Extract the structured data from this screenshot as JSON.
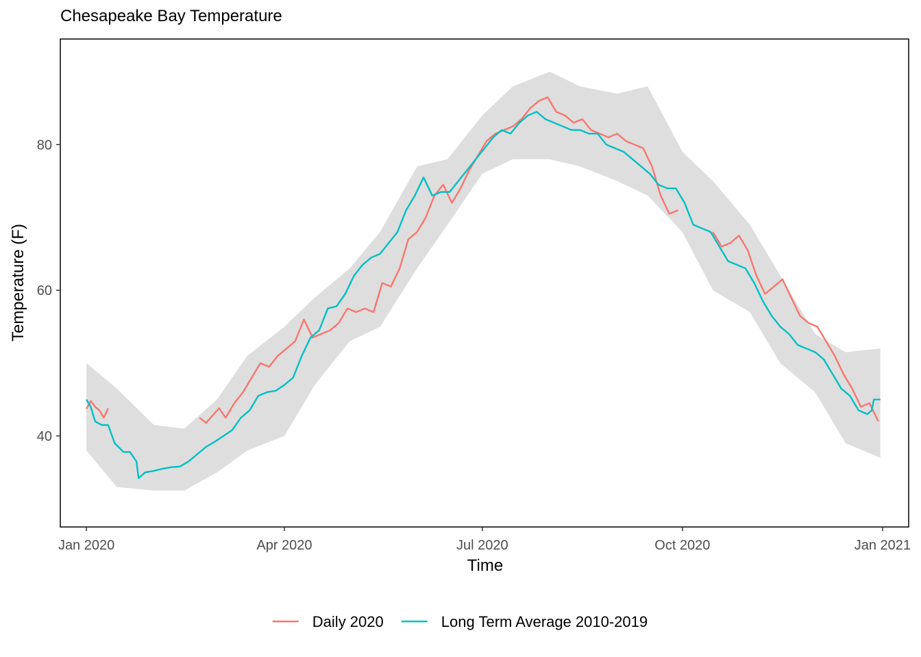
{
  "chart_data": {
    "type": "line",
    "title": "Chesapeake Bay Temperature",
    "xlabel": "Time",
    "ylabel": "Temperature (F)",
    "xlim": [
      "2019-12-20",
      "2021-01-13"
    ],
    "ylim": [
      27.5,
      94.5
    ],
    "x_ticks": [
      {
        "date": "2020-01-01",
        "label": "Jan 2020"
      },
      {
        "date": "2020-04-01",
        "label": "Apr 2020"
      },
      {
        "date": "2020-07-01",
        "label": "Jul 2020"
      },
      {
        "date": "2020-10-01",
        "label": "Oct 2020"
      },
      {
        "date": "2021-01-01",
        "label": "Jan 2021"
      }
    ],
    "y_ticks": [
      40,
      60,
      80
    ],
    "legend_position": "bottom",
    "grid": false,
    "colors": {
      "daily": "#F8766D",
      "average": "#00BFC4",
      "band": "#dedede"
    },
    "series": [
      {
        "name": "Daily 2020",
        "color": "#F8766D",
        "segments": [
          [
            [
              "2020-01-01",
              43.7
            ],
            [
              "2020-01-03",
              44.8
            ],
            [
              "2020-01-05",
              44.0
            ],
            [
              "2020-01-07",
              43.5
            ],
            [
              "2020-01-09",
              42.5
            ],
            [
              "2020-01-11",
              43.8
            ]
          ],
          [
            [
              "2020-02-22",
              42.5
            ],
            [
              "2020-02-25",
              41.8
            ],
            [
              "2020-02-28",
              42.8
            ],
            [
              "2020-03-02",
              43.8
            ],
            [
              "2020-03-05",
              42.5
            ],
            [
              "2020-03-09",
              44.5
            ],
            [
              "2020-03-13",
              46.0
            ],
            [
              "2020-03-17",
              48.0
            ],
            [
              "2020-03-21",
              50.0
            ],
            [
              "2020-03-25",
              49.5
            ],
            [
              "2020-03-29",
              51.0
            ],
            [
              "2020-04-02",
              52.0
            ],
            [
              "2020-04-06",
              53.0
            ],
            [
              "2020-04-10",
              56.0
            ],
            [
              "2020-04-14",
              53.5
            ],
            [
              "2020-04-18",
              54.0
            ],
            [
              "2020-04-22",
              54.5
            ],
            [
              "2020-04-26",
              55.5
            ],
            [
              "2020-04-30",
              57.5
            ],
            [
              "2020-05-04",
              57.0
            ],
            [
              "2020-05-08",
              57.5
            ],
            [
              "2020-05-12",
              57.0
            ],
            [
              "2020-05-16",
              61.0
            ],
            [
              "2020-05-20",
              60.5
            ],
            [
              "2020-05-24",
              63.0
            ],
            [
              "2020-05-28",
              67.0
            ],
            [
              "2020-06-01",
              68.0
            ],
            [
              "2020-06-05",
              70.0
            ],
            [
              "2020-06-09",
              73.0
            ],
            [
              "2020-06-13",
              74.5
            ],
            [
              "2020-06-17",
              72.0
            ],
            [
              "2020-06-21",
              74.0
            ],
            [
              "2020-06-25",
              76.5
            ],
            [
              "2020-06-29",
              78.5
            ],
            [
              "2020-07-03",
              80.5
            ],
            [
              "2020-07-07",
              81.5
            ],
            [
              "2020-07-11",
              82.0
            ],
            [
              "2020-07-15",
              82.5
            ],
            [
              "2020-07-19",
              83.5
            ],
            [
              "2020-07-23",
              85.0
            ],
            [
              "2020-07-27",
              86.0
            ],
            [
              "2020-07-31",
              86.5
            ],
            [
              "2020-08-04",
              84.5
            ],
            [
              "2020-08-08",
              84.0
            ],
            [
              "2020-08-12",
              83.0
            ],
            [
              "2020-08-16",
              83.5
            ],
            [
              "2020-08-20",
              82.0
            ],
            [
              "2020-08-24",
              81.5
            ],
            [
              "2020-08-28",
              81.0
            ],
            [
              "2020-09-01",
              81.5
            ],
            [
              "2020-09-05",
              80.5
            ],
            [
              "2020-09-09",
              80.0
            ],
            [
              "2020-09-13",
              79.5
            ],
            [
              "2020-09-17",
              77.0
            ],
            [
              "2020-09-21",
              73.0
            ],
            [
              "2020-09-25",
              70.5
            ],
            [
              "2020-09-29",
              71.0
            ]
          ],
          [
            [
              "2020-10-15",
              68.0
            ],
            [
              "2020-10-19",
              66.0
            ],
            [
              "2020-10-23",
              66.5
            ],
            [
              "2020-10-27",
              67.5
            ],
            [
              "2020-10-31",
              65.5
            ],
            [
              "2020-11-04",
              62.0
            ],
            [
              "2020-11-08",
              59.5
            ],
            [
              "2020-11-12",
              60.5
            ],
            [
              "2020-11-16",
              61.5
            ],
            [
              "2020-11-20",
              59.0
            ],
            [
              "2020-11-24",
              56.5
            ],
            [
              "2020-11-28",
              55.5
            ],
            [
              "2020-12-02",
              55.0
            ],
            [
              "2020-12-06",
              53.0
            ],
            [
              "2020-12-10",
              51.0
            ],
            [
              "2020-12-14",
              48.5
            ],
            [
              "2020-12-18",
              46.5
            ],
            [
              "2020-12-22",
              44.0
            ],
            [
              "2020-12-26",
              44.5
            ],
            [
              "2020-12-30",
              42.0
            ]
          ]
        ]
      },
      {
        "name": "Long Term Average 2010-2019",
        "color": "#00BFC4",
        "segments": [
          [
            [
              "2020-01-01",
              45.0
            ],
            [
              "2020-01-03",
              44.0
            ],
            [
              "2020-01-05",
              42.0
            ],
            [
              "2020-01-08",
              41.5
            ],
            [
              "2020-01-11",
              41.5
            ],
            [
              "2020-01-14",
              39.0
            ],
            [
              "2020-01-18",
              37.8
            ],
            [
              "2020-01-21",
              37.8
            ],
            [
              "2020-01-24",
              36.5
            ],
            [
              "2020-01-25",
              34.2
            ],
            [
              "2020-01-28",
              35.0
            ],
            [
              "2020-02-01",
              35.2
            ],
            [
              "2020-02-05",
              35.5
            ],
            [
              "2020-02-09",
              35.7
            ],
            [
              "2020-02-13",
              35.8
            ],
            [
              "2020-02-17",
              36.5
            ],
            [
              "2020-02-21",
              37.5
            ],
            [
              "2020-02-25",
              38.5
            ],
            [
              "2020-02-29",
              39.2
            ],
            [
              "2020-03-04",
              40.0
            ],
            [
              "2020-03-08",
              40.8
            ],
            [
              "2020-03-12",
              42.5
            ],
            [
              "2020-03-16",
              43.5
            ],
            [
              "2020-03-20",
              45.5
            ],
            [
              "2020-03-24",
              46.0
            ],
            [
              "2020-03-28",
              46.2
            ],
            [
              "2020-04-01",
              47.0
            ],
            [
              "2020-04-05",
              48.0
            ],
            [
              "2020-04-09",
              51.0
            ],
            [
              "2020-04-13",
              53.5
            ],
            [
              "2020-04-17",
              54.5
            ],
            [
              "2020-04-21",
              57.5
            ],
            [
              "2020-04-25",
              57.8
            ],
            [
              "2020-04-29",
              59.5
            ],
            [
              "2020-05-03",
              62.0
            ],
            [
              "2020-05-07",
              63.5
            ],
            [
              "2020-05-11",
              64.5
            ],
            [
              "2020-05-15",
              65.0
            ],
            [
              "2020-05-19",
              66.5
            ],
            [
              "2020-05-23",
              68.0
            ],
            [
              "2020-05-27",
              71.0
            ],
            [
              "2020-05-31",
              73.0
            ],
            [
              "2020-06-04",
              75.5
            ],
            [
              "2020-06-08",
              73.0
            ],
            [
              "2020-06-12",
              73.5
            ],
            [
              "2020-06-16",
              73.5
            ],
            [
              "2020-06-20",
              75.0
            ],
            [
              "2020-06-24",
              76.5
            ],
            [
              "2020-06-28",
              78.0
            ],
            [
              "2020-07-02",
              79.5
            ],
            [
              "2020-07-06",
              81.0
            ],
            [
              "2020-07-10",
              82.0
            ],
            [
              "2020-07-14",
              81.5
            ],
            [
              "2020-07-18",
              83.0
            ],
            [
              "2020-07-22",
              84.0
            ],
            [
              "2020-07-26",
              84.5
            ],
            [
              "2020-07-30",
              83.5
            ],
            [
              "2020-08-03",
              83.0
            ],
            [
              "2020-08-07",
              82.5
            ],
            [
              "2020-08-11",
              82.0
            ],
            [
              "2020-08-15",
              82.0
            ],
            [
              "2020-08-19",
              81.5
            ],
            [
              "2020-08-23",
              81.5
            ],
            [
              "2020-08-27",
              80.0
            ],
            [
              "2020-08-31",
              79.5
            ],
            [
              "2020-09-04",
              79.0
            ],
            [
              "2020-09-08",
              78.0
            ],
            [
              "2020-09-12",
              77.0
            ],
            [
              "2020-09-16",
              76.0
            ],
            [
              "2020-09-20",
              74.5
            ],
            [
              "2020-09-24",
              74.0
            ],
            [
              "2020-09-28",
              74.0
            ],
            [
              "2020-10-02",
              72.0
            ],
            [
              "2020-10-06",
              69.0
            ],
            [
              "2020-10-10",
              68.5
            ],
            [
              "2020-10-14",
              68.0
            ],
            [
              "2020-10-18",
              66.0
            ],
            [
              "2020-10-22",
              64.0
            ],
            [
              "2020-10-26",
              63.5
            ],
            [
              "2020-10-30",
              63.0
            ],
            [
              "2020-11-03",
              61.0
            ],
            [
              "2020-11-07",
              58.5
            ],
            [
              "2020-11-11",
              56.5
            ],
            [
              "2020-11-15",
              55.0
            ],
            [
              "2020-11-19",
              54.0
            ],
            [
              "2020-11-23",
              52.5
            ],
            [
              "2020-11-27",
              52.0
            ],
            [
              "2020-12-01",
              51.5
            ],
            [
              "2020-12-05",
              50.5
            ],
            [
              "2020-12-09",
              48.5
            ],
            [
              "2020-12-13",
              46.5
            ],
            [
              "2020-12-17",
              45.5
            ],
            [
              "2020-12-21",
              43.5
            ],
            [
              "2020-12-25",
              43.0
            ],
            [
              "2020-12-27",
              43.5
            ],
            [
              "2020-12-28",
              45.0
            ],
            [
              "2020-12-31",
              45.0
            ]
          ]
        ]
      }
    ],
    "range_band": {
      "dates": [
        "2020-01-01",
        "2020-01-15",
        "2020-02-01",
        "2020-02-15",
        "2020-03-01",
        "2020-03-15",
        "2020-04-01",
        "2020-04-15",
        "2020-05-01",
        "2020-05-15",
        "2020-06-01",
        "2020-06-15",
        "2020-07-01",
        "2020-07-15",
        "2020-08-01",
        "2020-08-15",
        "2020-09-01",
        "2020-09-15",
        "2020-10-01",
        "2020-10-15",
        "2020-11-01",
        "2020-11-15",
        "2020-12-01",
        "2020-12-15",
        "2020-12-31"
      ],
      "upper": [
        50.0,
        46.5,
        41.5,
        41.0,
        45.0,
        51.0,
        55.0,
        59.0,
        63.0,
        68.0,
        77.0,
        78.0,
        84.0,
        88.0,
        90.0,
        88.0,
        87.0,
        88.0,
        79.0,
        75.0,
        69.0,
        62.0,
        54.0,
        51.5,
        52.0
      ],
      "lower": [
        38.0,
        33.0,
        32.5,
        32.5,
        35.0,
        38.0,
        40.0,
        47.0,
        53.0,
        55.0,
        63.0,
        69.0,
        76.0,
        78.0,
        78.0,
        77.0,
        75.0,
        73.0,
        68.0,
        60.0,
        57.0,
        50.0,
        46.0,
        39.0,
        37.0
      ]
    }
  }
}
